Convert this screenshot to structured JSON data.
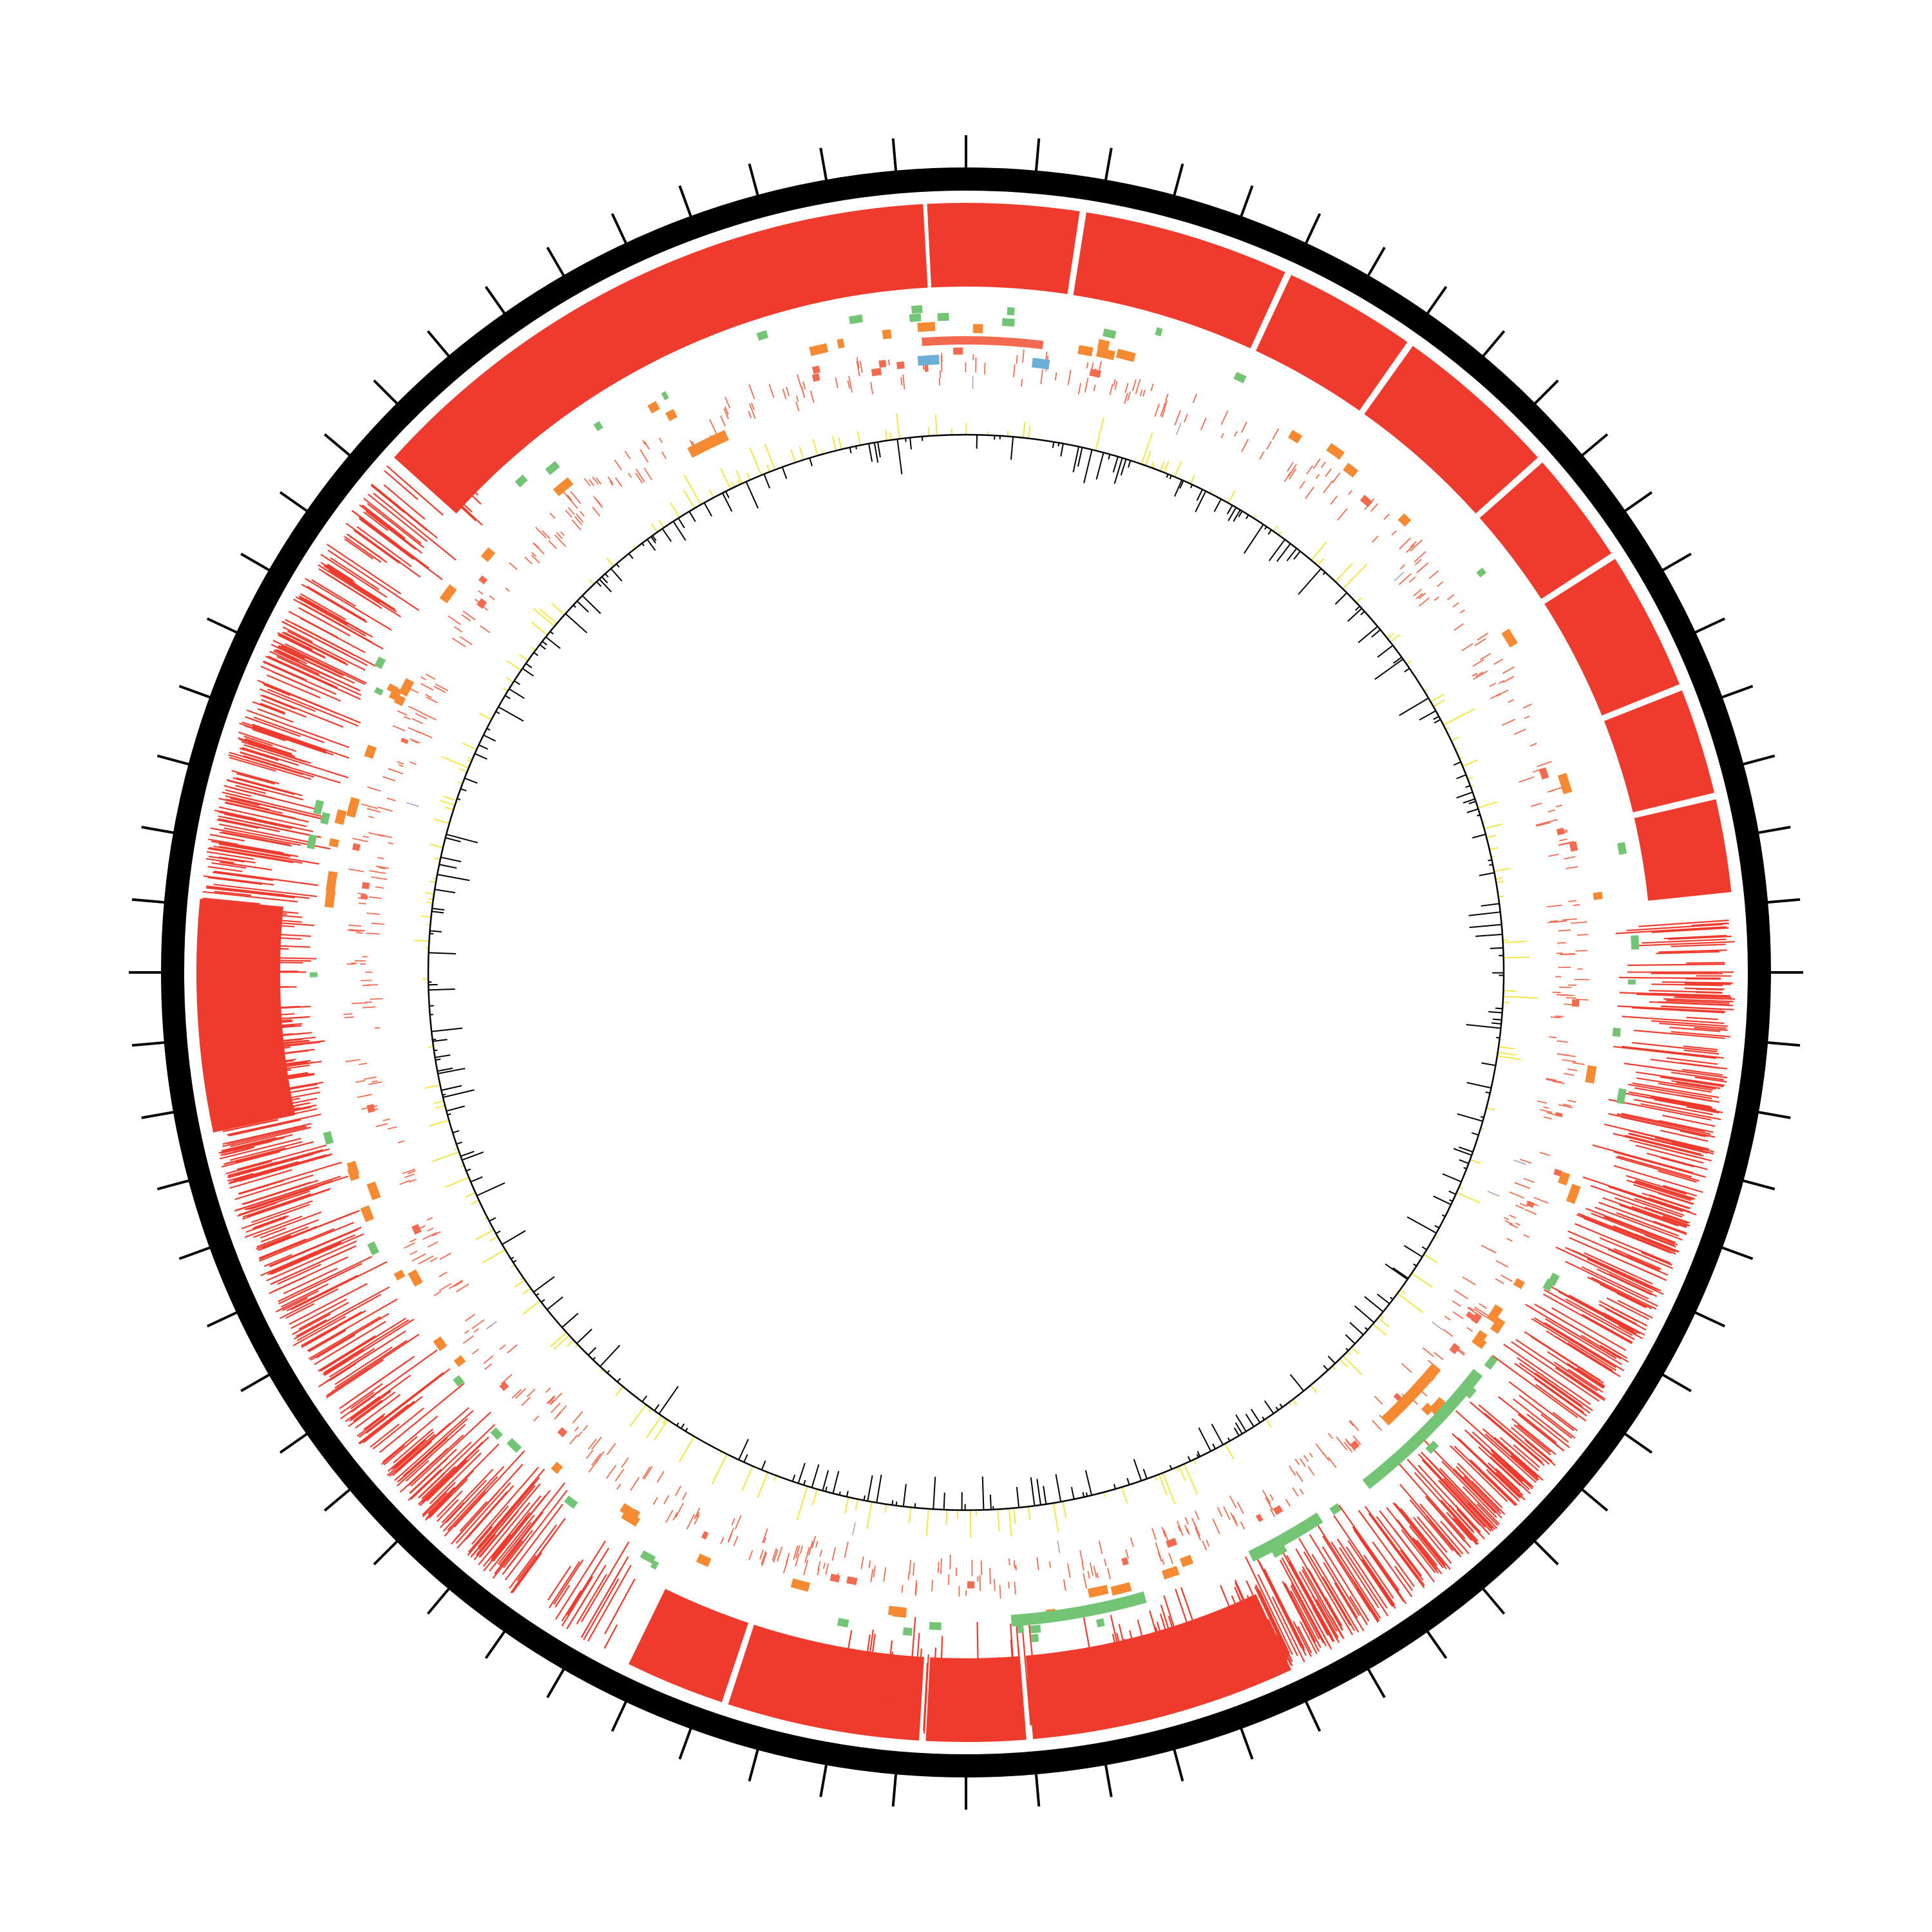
{
  "diagram": {
    "type": "circular-genome-map",
    "colors": {
      "background": "#ffffff",
      "backbone": "#000000",
      "tick": "#000000",
      "feature_red": "#ee3b2e",
      "feature_salmon": "#f26a4f",
      "feature_orange": "#f58a32",
      "feature_green": "#74c476",
      "feature_blue": "#6baed6",
      "feature_purple": "#9e9ac8",
      "gc_positive": "#f5e642",
      "gc_negative": "#000000",
      "gc_baseline": "#000000"
    },
    "ticks": {
      "count": 72
    },
    "outer_blocks": [
      {
        "start": -48.0,
        "end": -3.2
      },
      {
        "start": -2.9,
        "end": 8.5
      },
      {
        "start": 9.0,
        "end": 24.5
      },
      {
        "start": 25.0,
        "end": 35.0
      },
      {
        "start": 35.5,
        "end": 48.0
      },
      {
        "start": 48.5,
        "end": 57.0
      },
      {
        "start": 57.5,
        "end": 68.0
      },
      {
        "start": 68.5,
        "end": 76.5
      },
      {
        "start": 77.0,
        "end": 84.0
      },
      {
        "start": -102.0,
        "end": -84.5
      },
      {
        "start": 155.0,
        "end": 175.0
      },
      {
        "start": 175.5,
        "end": 183.0
      },
      {
        "start": 183.5,
        "end": 198.0
      },
      {
        "start": 198.5,
        "end": 206.0
      }
    ],
    "line_segments": [
      {
        "start": 86,
        "end": 158,
        "density": 1.0
      },
      {
        "start": 160,
        "end": 190,
        "density": 0.55
      },
      {
        "start": 216,
        "end": 300,
        "density": 1.0
      },
      {
        "start": 300,
        "end": 310,
        "density": 0.7
      },
      {
        "start": 208,
        "end": 214,
        "density": 0.5
      },
      {
        "start": 258,
        "end": 266,
        "density": 1.4
      },
      {
        "start": 310,
        "end": 316,
        "density": 0.4
      }
    ]
  }
}
